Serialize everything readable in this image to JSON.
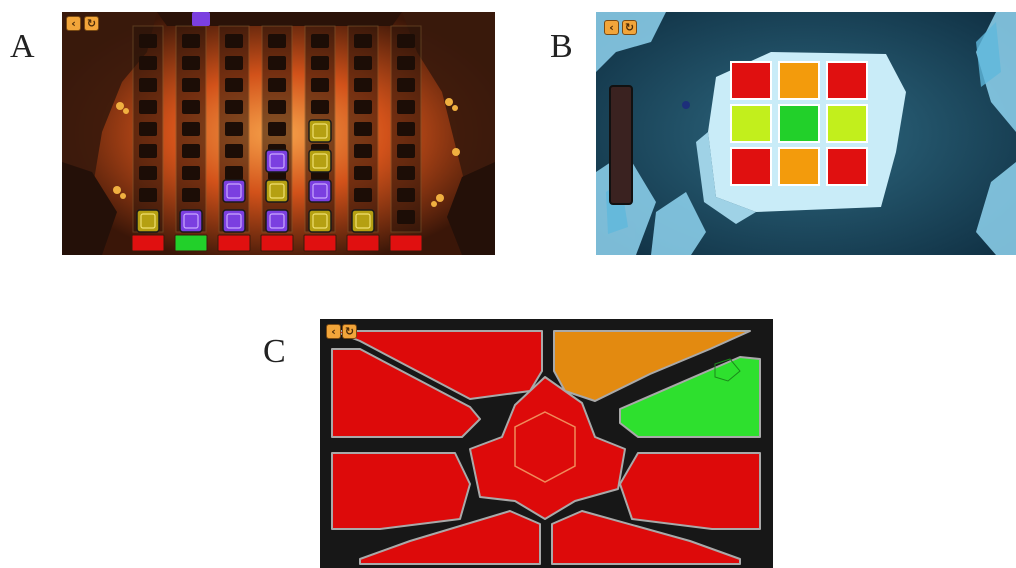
{
  "panels": [
    {
      "label": "A",
      "scene": "lava-cave-column-puzzle"
    },
    {
      "label": "B",
      "scene": "ice-cave-grid-puzzle"
    },
    {
      "label": "C",
      "scene": "region-coloring-puzzle"
    }
  ],
  "controls": {
    "back_icon": "back-arrow-icon",
    "restart_icon": "restart-icon"
  },
  "panel_a": {
    "column_count": 7,
    "indicator_colors": [
      "red",
      "green",
      "red",
      "red",
      "red",
      "red",
      "red"
    ],
    "column_stacks": [
      [
        "yellow"
      ],
      [
        "purple"
      ],
      [
        "purple",
        "purple"
      ],
      [
        "purple",
        "yellow",
        "purple"
      ],
      [
        "yellow",
        "purple",
        "yellow",
        "yellow"
      ],
      [
        "yellow"
      ],
      []
    ],
    "held_block": "purple"
  },
  "panel_b": {
    "grid": [
      [
        "red",
        "orange",
        "red"
      ],
      [
        "yellow-green",
        "green",
        "yellow-green"
      ],
      [
        "red",
        "orange",
        "red"
      ]
    ]
  },
  "panel_c": {
    "regions": [
      {
        "id": "top-left",
        "color": "red"
      },
      {
        "id": "top-right",
        "color": "orange"
      },
      {
        "id": "upper-left",
        "color": "red"
      },
      {
        "id": "upper-right",
        "color": "green"
      },
      {
        "id": "center",
        "color": "red"
      },
      {
        "id": "lower-left",
        "color": "red"
      },
      {
        "id": "lower-right",
        "color": "red"
      },
      {
        "id": "bottom-left",
        "color": "red"
      },
      {
        "id": "bottom-right",
        "color": "red"
      }
    ]
  },
  "colors": {
    "red": "#e01010",
    "green": "#22d02a",
    "orange": "#f39b0c",
    "yellow-green": "#c2ef1c",
    "purple": "#7b3fe0",
    "yellow": "#b5a012",
    "c-red": "#dd0a0a",
    "c-orange": "#e38a10",
    "c-green": "#2ee02e"
  }
}
